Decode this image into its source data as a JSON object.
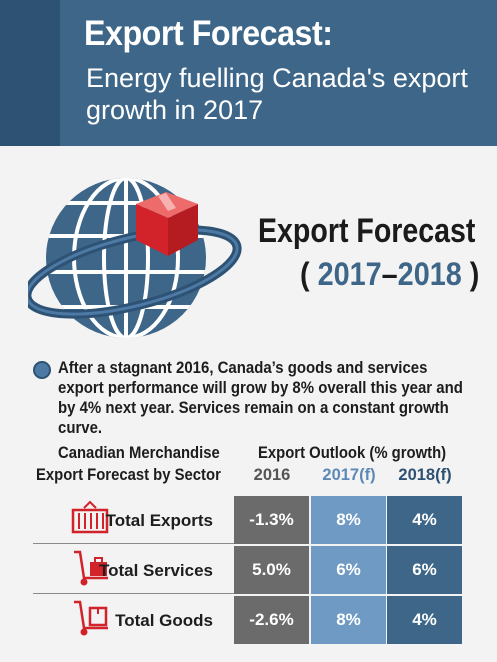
{
  "header": {
    "title": "Export Forecast:",
    "subtitle": "Energy fuelling Canada's export growth in 2017"
  },
  "forecast": {
    "title": "Export Forecast",
    "open_paren": "(",
    "year_start": "2017",
    "dash": "–",
    "year_end": "2018",
    "close_paren": ")"
  },
  "intro": "After a stagnant 2016, Canada’s goods and services export performance will grow by 8% overall this year and by 4% next year. Services remain on a constant growth curve.",
  "table": {
    "left_header_line1": "Canadian Merchandise",
    "left_header_line2": "Export Forecast by Sector",
    "outlook_header": "Export Outlook (% growth)",
    "columns": [
      "2016",
      "2017(f)",
      "2018(f)"
    ],
    "rows": [
      {
        "label": "Total Exports",
        "icon": "container-icon",
        "values": [
          "-1.3%",
          "8%",
          "4%"
        ]
      },
      {
        "label": "Total Services",
        "icon": "hand-truck-suitcase-icon",
        "values": [
          "5.0%",
          "6%",
          "6%"
        ]
      },
      {
        "label": "Total Goods",
        "icon": "hand-truck-box-icon",
        "values": [
          "-2.6%",
          "8%",
          "4%"
        ]
      }
    ]
  },
  "colors": {
    "header_bg": "#3d6689",
    "col_2016": "#6b6b6b",
    "col_2017": "#6f9ac4",
    "col_2018": "#3d6689",
    "icon_red": "#d2232a"
  }
}
